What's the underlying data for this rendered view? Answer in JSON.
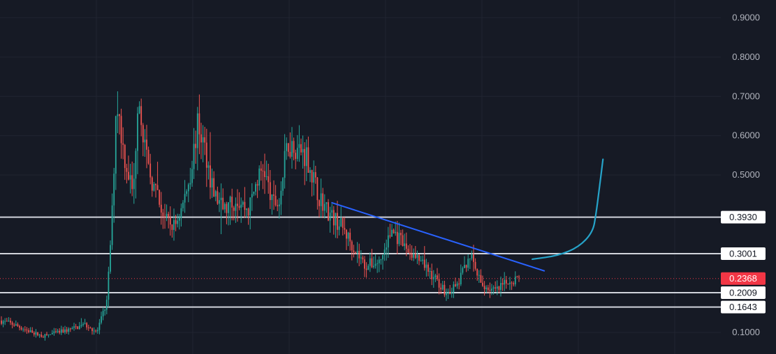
{
  "chart_data": {
    "type": "candlestick",
    "title": "",
    "xlabel": "",
    "ylabel": "",
    "ylim": [
      0.045,
      0.945
    ],
    "y_ticks": [
      {
        "value": 0.9,
        "label": "0.9000"
      },
      {
        "value": 0.8,
        "label": "0.8000"
      },
      {
        "value": 0.7,
        "label": "0.7000"
      },
      {
        "value": 0.6,
        "label": "0.6000"
      },
      {
        "value": 0.5,
        "label": "0.5000"
      },
      {
        "value": 0.1,
        "label": "0.1000"
      }
    ],
    "grid": true,
    "horizontal_levels": [
      {
        "value": 0.393,
        "label": "0.3930"
      },
      {
        "value": 0.3001,
        "label": "0.3001"
      },
      {
        "value": 0.2009,
        "label": "0.2009"
      },
      {
        "value": 0.1643,
        "label": "0.1643"
      }
    ],
    "current_price": {
      "value": 0.2368,
      "label": "0.2368",
      "color": "#f23645"
    },
    "trendline": {
      "from": [
        0.427,
        0.43
      ],
      "to": [
        0.702,
        0.256
      ],
      "color": "#2962ff"
    },
    "projection_curve": {
      "points": [
        [
          0.686,
          0.286
        ],
        [
          0.719,
          0.295
        ],
        [
          0.746,
          0.317
        ],
        [
          0.764,
          0.355
        ],
        [
          0.768,
          0.4
        ],
        [
          0.772,
          0.46
        ],
        [
          0.777,
          0.54
        ]
      ],
      "color": "#26a3c9"
    },
    "colors": {
      "up": "#26a69a",
      "down": "#ef5350",
      "level": "#d1d4dc",
      "grid": "#202431",
      "background": "#161a25"
    },
    "price_path": [
      [
        0.0,
        0.13
      ],
      [
        0.018,
        0.12
      ],
      [
        0.035,
        0.105
      ],
      [
        0.055,
        0.09
      ],
      [
        0.075,
        0.1
      ],
      [
        0.095,
        0.11
      ],
      [
        0.11,
        0.12
      ],
      [
        0.125,
        0.1
      ],
      [
        0.138,
        0.18
      ],
      [
        0.145,
        0.42
      ],
      [
        0.15,
        0.7
      ],
      [
        0.16,
        0.55
      ],
      [
        0.172,
        0.45
      ],
      [
        0.178,
        0.72
      ],
      [
        0.19,
        0.52
      ],
      [
        0.205,
        0.43
      ],
      [
        0.215,
        0.38
      ],
      [
        0.225,
        0.37
      ],
      [
        0.235,
        0.42
      ],
      [
        0.245,
        0.5
      ],
      [
        0.255,
        0.63
      ],
      [
        0.265,
        0.56
      ],
      [
        0.275,
        0.45
      ],
      [
        0.29,
        0.41
      ],
      [
        0.305,
        0.44
      ],
      [
        0.32,
        0.41
      ],
      [
        0.33,
        0.48
      ],
      [
        0.34,
        0.52
      ],
      [
        0.35,
        0.43
      ],
      [
        0.36,
        0.43
      ],
      [
        0.37,
        0.58
      ],
      [
        0.382,
        0.57
      ],
      [
        0.395,
        0.55
      ],
      [
        0.41,
        0.45
      ],
      [
        0.425,
        0.4
      ],
      [
        0.44,
        0.37
      ],
      [
        0.455,
        0.32
      ],
      [
        0.47,
        0.27
      ],
      [
        0.49,
        0.28
      ],
      [
        0.505,
        0.36
      ],
      [
        0.52,
        0.32
      ],
      [
        0.54,
        0.28
      ],
      [
        0.56,
        0.24
      ],
      [
        0.575,
        0.2
      ],
      [
        0.59,
        0.22
      ],
      [
        0.605,
        0.3
      ],
      [
        0.62,
        0.22
      ],
      [
        0.64,
        0.205
      ],
      [
        0.655,
        0.23
      ],
      [
        0.67,
        0.24
      ]
    ]
  }
}
